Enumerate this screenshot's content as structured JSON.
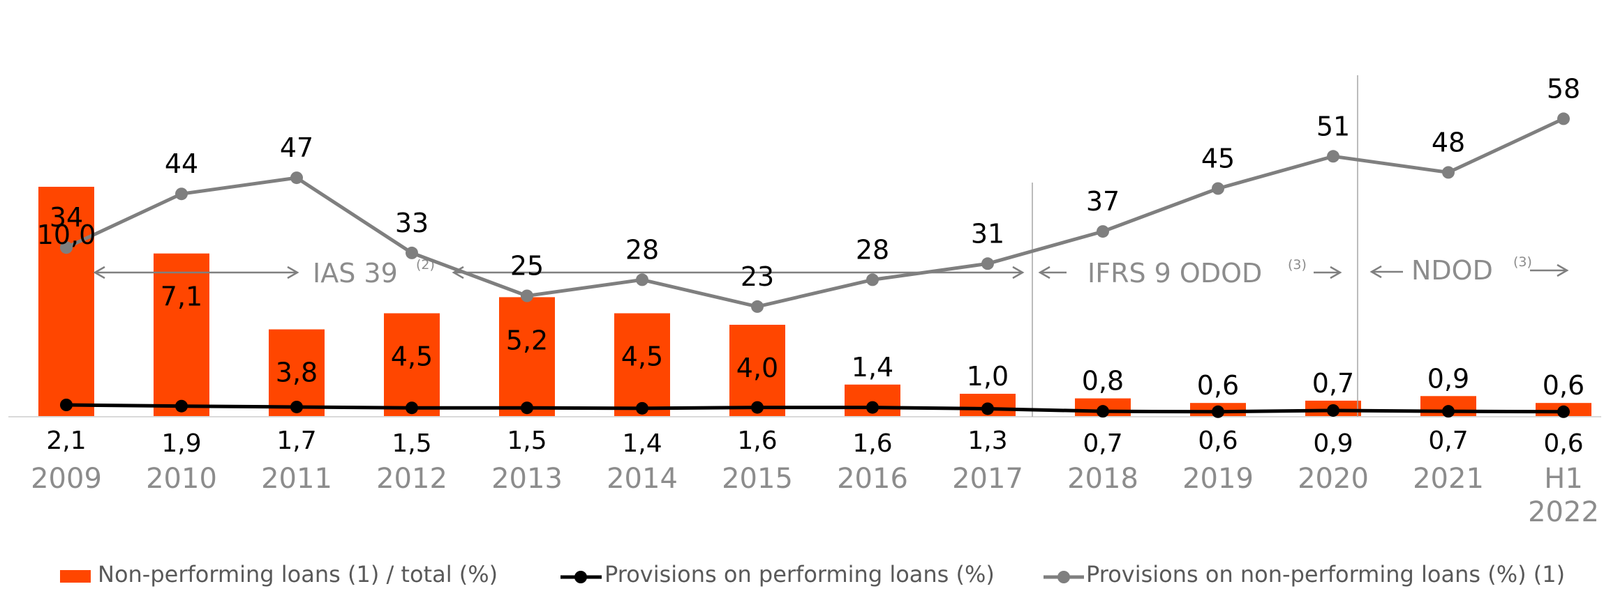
{
  "chart_data": {
    "type": "bar",
    "categories": [
      "2009",
      "2010",
      "2011",
      "2012",
      "2013",
      "2014",
      "2015",
      "2016",
      "2017",
      "2018",
      "2019",
      "2020",
      "2021",
      "H1 2022"
    ],
    "series": [
      {
        "name": "Non-performing loans (1) / total (%)",
        "kind": "bar",
        "color": "#ff4600",
        "values": [
          10.0,
          7.1,
          3.8,
          4.5,
          5.2,
          4.5,
          4.0,
          1.4,
          1.0,
          0.8,
          0.6,
          0.7,
          0.9,
          0.6
        ],
        "labels": [
          "10,0",
          "7,1",
          "3,8",
          "4,5",
          "5,2",
          "4,5",
          "4,0",
          "1,4",
          "1,0",
          "0,8",
          "0,6",
          "0,7",
          "0,9",
          "0,6"
        ]
      },
      {
        "name": "Provisions on performing loans (%)",
        "kind": "line",
        "color": "#000000",
        "values": [
          2.1,
          1.9,
          1.7,
          1.5,
          1.5,
          1.4,
          1.6,
          1.6,
          1.3,
          0.7,
          0.6,
          0.9,
          0.7,
          0.6
        ],
        "labels": [
          "2,1",
          "1,9",
          "1,7",
          "1,5",
          "1,5",
          "1,4",
          "1,6",
          "1,6",
          "1,3",
          "0,7",
          "0,6",
          "0,9",
          "0,7",
          "0,6"
        ]
      },
      {
        "name": "Provisions on non-performing loans (%) (1)",
        "kind": "line",
        "color": "#7f7f7f",
        "values": [
          34,
          44,
          47,
          33,
          25,
          28,
          23,
          28,
          31,
          37,
          45,
          51,
          48,
          58
        ],
        "labels": [
          "34",
          "44",
          "47",
          "33",
          "25",
          "28",
          "23",
          "28",
          "31",
          "37",
          "45",
          "51",
          "48",
          "58"
        ]
      }
    ],
    "annotations": [
      {
        "text": "IAS 39",
        "sup": "(2)"
      },
      {
        "text": "IFRS 9 ODOD",
        "sup": "(3)"
      },
      {
        "text": "NDOD",
        "sup": "(3)"
      }
    ],
    "legend_position": "bottom",
    "grid": false
  }
}
